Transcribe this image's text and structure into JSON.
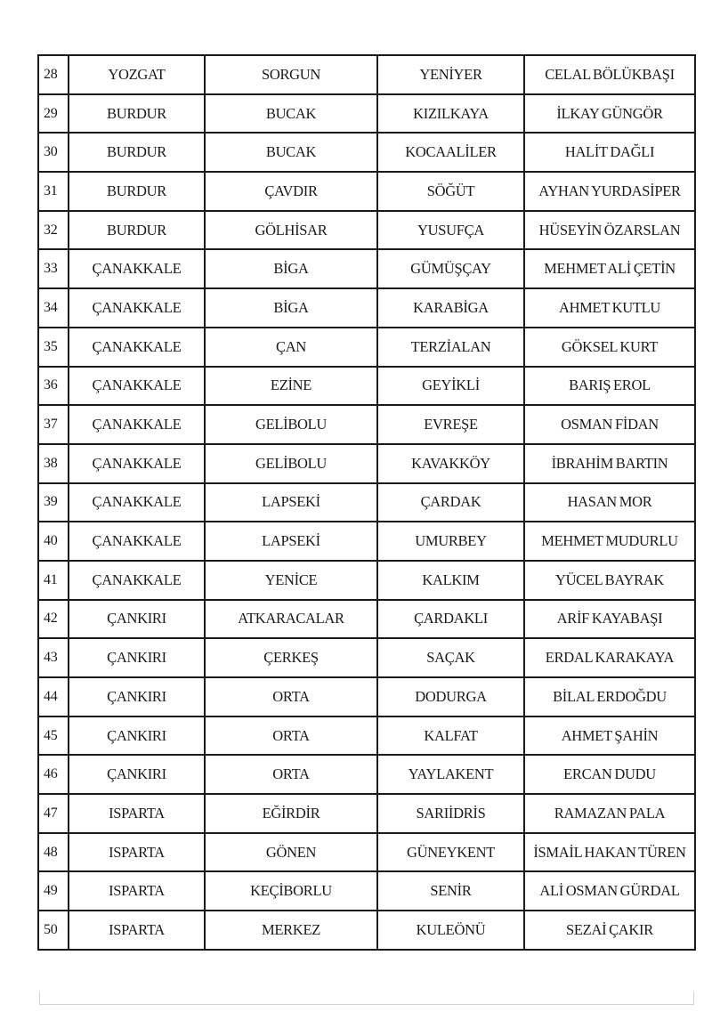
{
  "table": {
    "rows": [
      [
        "28",
        "YOZGAT",
        "SORGUN",
        "YENİYER",
        "CELAL BÖLÜKBAŞI"
      ],
      [
        "29",
        "BURDUR",
        "BUCAK",
        "KIZILKAYA",
        "İLKAY GÜNGÖR"
      ],
      [
        "30",
        "BURDUR",
        "BUCAK",
        "KOCAALİLER",
        "HALİT DAĞLI"
      ],
      [
        "31",
        "BURDUR",
        "ÇAVDIR",
        "SÖĞÜT",
        "AYHAN YURDASİPER"
      ],
      [
        "32",
        "BURDUR",
        "GÖLHİSAR",
        "YUSUFÇA",
        "HÜSEYİN ÖZARSLAN"
      ],
      [
        "33",
        "ÇANAKKALE",
        "BİGA",
        "GÜMÜŞÇAY",
        "MEHMET ALİ ÇETİN"
      ],
      [
        "34",
        "ÇANAKKALE",
        "BİGA",
        "KARABİGA",
        "AHMET KUTLU"
      ],
      [
        "35",
        "ÇANAKKALE",
        "ÇAN",
        "TERZİALAN",
        "GÖKSEL KURT"
      ],
      [
        "36",
        "ÇANAKKALE",
        "EZİNE",
        "GEYİKLİ",
        "BARIŞ EROL"
      ],
      [
        "37",
        "ÇANAKKALE",
        "GELİBOLU",
        "EVREŞE",
        "OSMAN FİDAN"
      ],
      [
        "38",
        "ÇANAKKALE",
        "GELİBOLU",
        "KAVAKKÖY",
        "İBRAHİM BARTIN"
      ],
      [
        "39",
        "ÇANAKKALE",
        "LAPSEKİ",
        "ÇARDAK",
        "HASAN MOR"
      ],
      [
        "40",
        "ÇANAKKALE",
        "LAPSEKİ",
        "UMURBEY",
        "MEHMET MUDURLU"
      ],
      [
        "41",
        "ÇANAKKALE",
        "YENİCE",
        "KALKIM",
        "YÜCEL BAYRAK"
      ],
      [
        "42",
        "ÇANKIRI",
        "ATKARACALAR",
        "ÇARDAKLI",
        "ARİF KAYABAŞI"
      ],
      [
        "43",
        "ÇANKIRI",
        "ÇERKEŞ",
        "SAÇAK",
        "ERDAL KARAKAYA"
      ],
      [
        "44",
        "ÇANKIRI",
        "ORTA",
        "DODURGA",
        "BİLAL ERDOĞDU"
      ],
      [
        "45",
        "ÇANKIRI",
        "ORTA",
        "KALFAT",
        "AHMET ŞAHİN"
      ],
      [
        "46",
        "ÇANKIRI",
        "ORTA",
        "YAYLAKENT",
        "ERCAN DUDU"
      ],
      [
        "47",
        "ISPARTA",
        "EĞİRDİR",
        "SARIİDRİS",
        "RAMAZAN PALA"
      ],
      [
        "48",
        "ISPARTA",
        "GÖNEN",
        "GÜNEYKENT",
        "İSMAİL HAKAN TÜREN"
      ],
      [
        "49",
        "ISPARTA",
        "KEÇİBORLU",
        "SENİR",
        "ALİ OSMAN GÜRDAL"
      ],
      [
        "50",
        "ISPARTA",
        "MERKEZ",
        "KULEÖNÜ",
        "SEZAİ ÇAKIR"
      ]
    ]
  }
}
